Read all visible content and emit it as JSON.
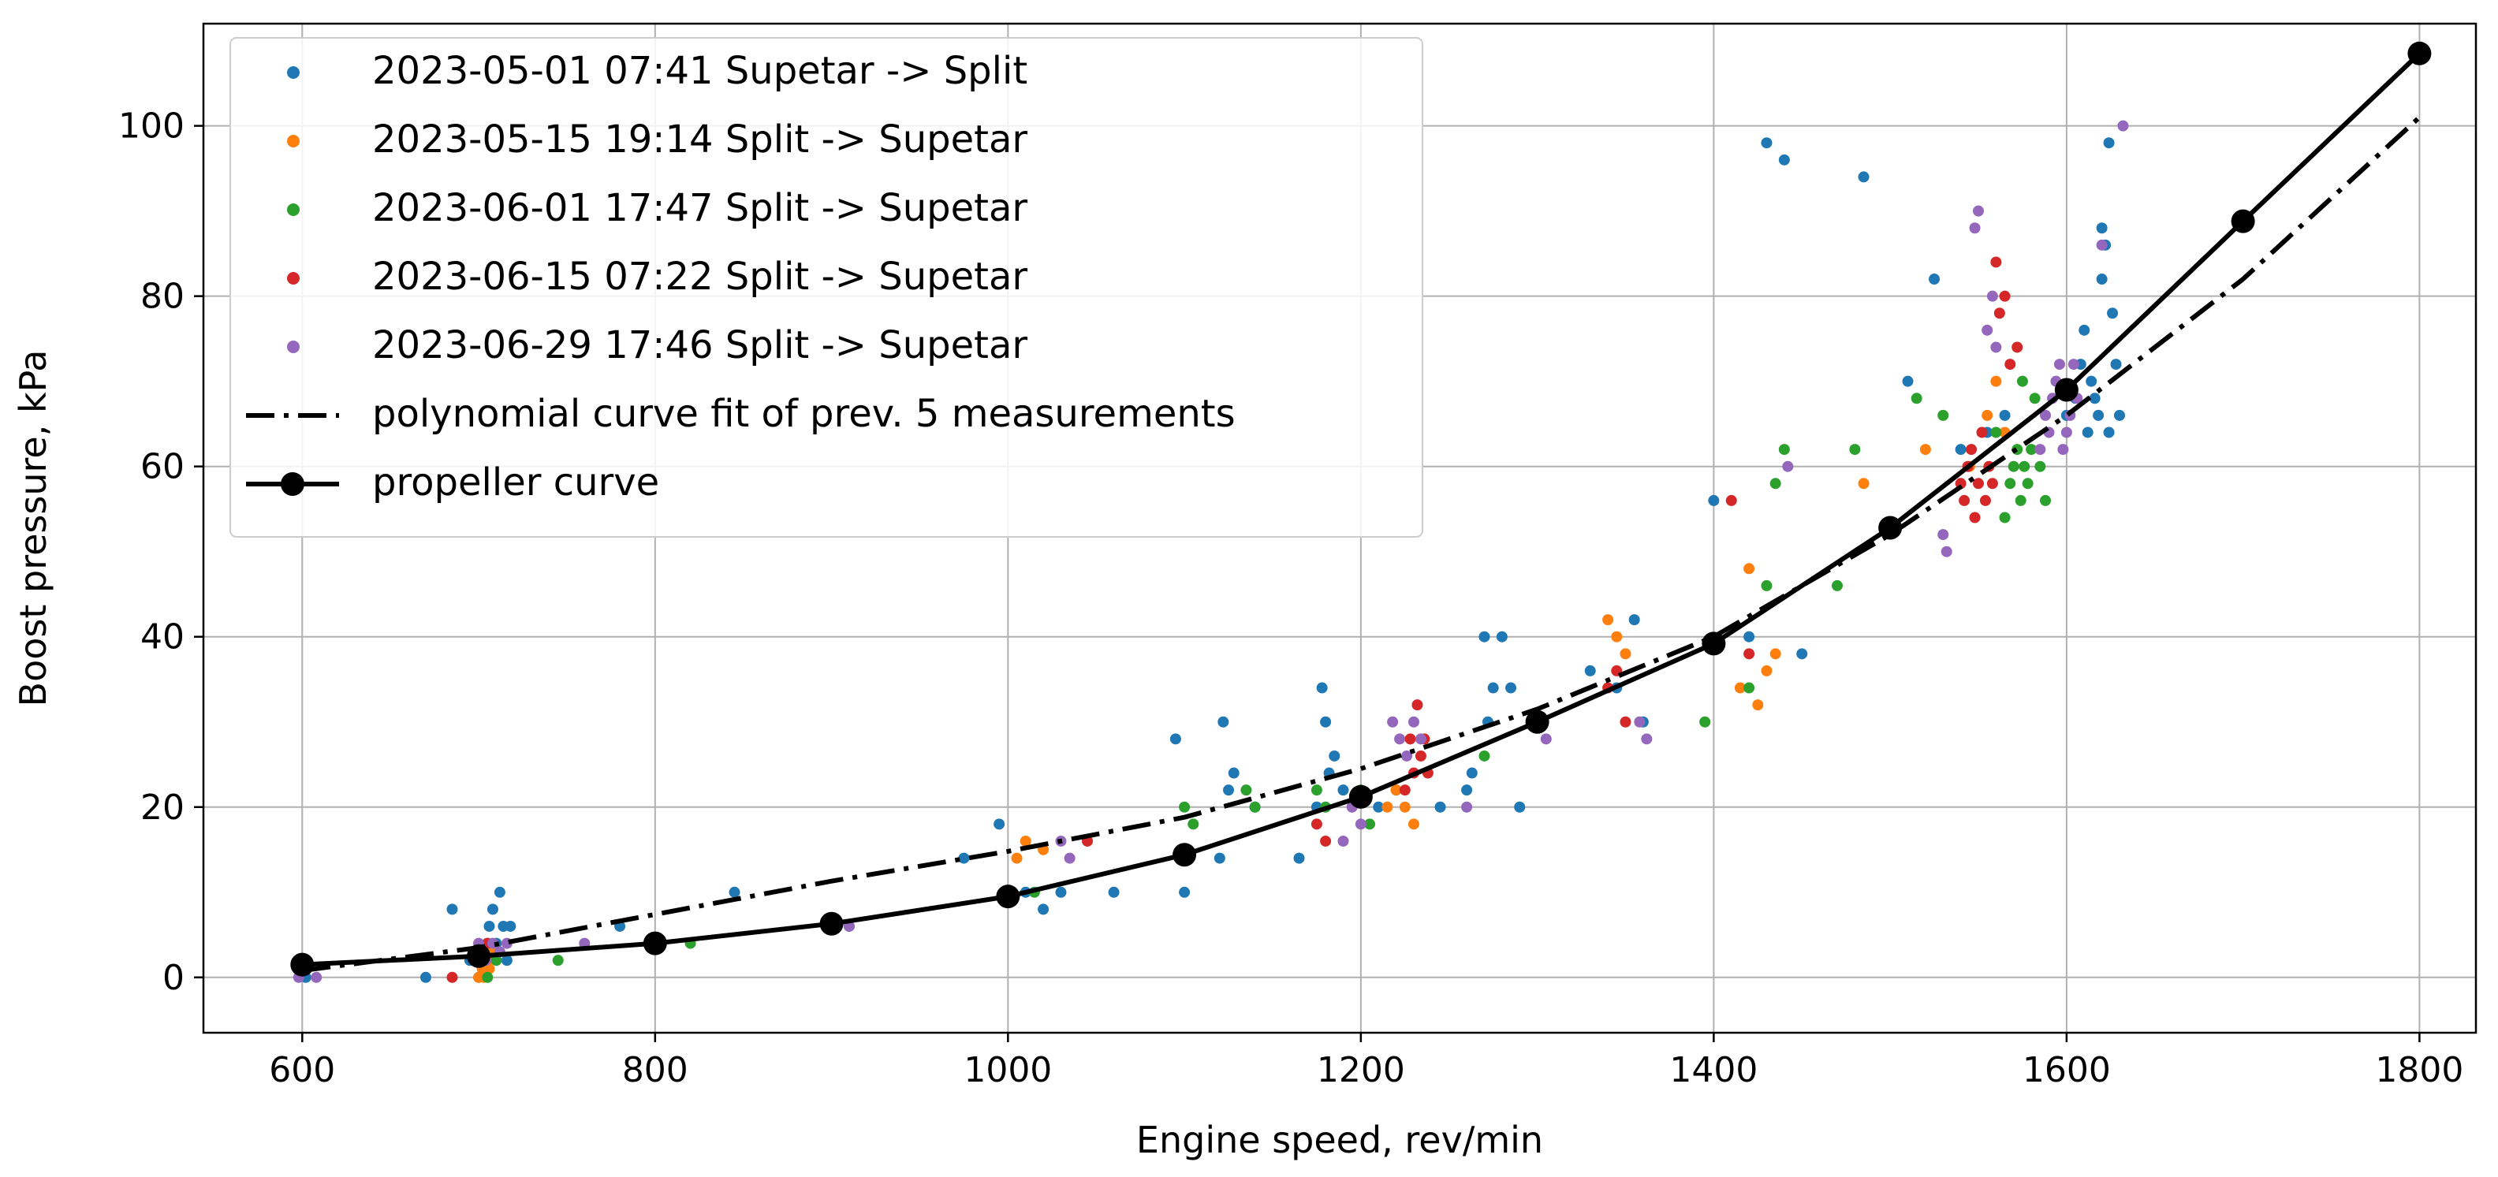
{
  "chart_data": {
    "type": "scatter",
    "xlabel": "Engine speed, rev/min",
    "ylabel": "Boost pressure, kPa",
    "xlim": [
      544,
      1832
    ],
    "ylim": [
      -6.5,
      112
    ],
    "xticks": [
      600,
      800,
      1000,
      1200,
      1400,
      1600,
      1800
    ],
    "yticks": [
      0,
      20,
      40,
      60,
      80,
      100
    ],
    "grid": true,
    "legend_position": "top-left",
    "series": [
      {
        "name": "2023-05-01  07:41 Supetar -> Split",
        "kind": "scatter",
        "color": "#1f77b4",
        "points": [
          [
            600,
            1
          ],
          [
            602,
            0
          ],
          [
            670,
            0
          ],
          [
            685,
            8
          ],
          [
            695,
            2
          ],
          [
            700,
            0
          ],
          [
            702,
            2
          ],
          [
            705,
            4
          ],
          [
            706,
            6
          ],
          [
            708,
            8
          ],
          [
            710,
            4
          ],
          [
            712,
            10
          ],
          [
            714,
            6
          ],
          [
            716,
            2
          ],
          [
            718,
            6
          ],
          [
            780,
            6
          ],
          [
            845,
            10
          ],
          [
            910,
            6
          ],
          [
            975,
            14
          ],
          [
            995,
            18
          ],
          [
            1010,
            10
          ],
          [
            1020,
            8
          ],
          [
            1030,
            10
          ],
          [
            1060,
            10
          ],
          [
            1095,
            28
          ],
          [
            1100,
            10
          ],
          [
            1120,
            14
          ],
          [
            1122,
            30
          ],
          [
            1125,
            22
          ],
          [
            1128,
            24
          ],
          [
            1140,
            20
          ],
          [
            1165,
            14
          ],
          [
            1175,
            20
          ],
          [
            1178,
            34
          ],
          [
            1180,
            30
          ],
          [
            1182,
            24
          ],
          [
            1185,
            26
          ],
          [
            1190,
            22
          ],
          [
            1210,
            20
          ],
          [
            1220,
            22
          ],
          [
            1245,
            20
          ],
          [
            1260,
            22
          ],
          [
            1263,
            24
          ],
          [
            1270,
            40
          ],
          [
            1272,
            30
          ],
          [
            1275,
            34
          ],
          [
            1280,
            40
          ],
          [
            1285,
            34
          ],
          [
            1290,
            20
          ],
          [
            1300,
            30
          ],
          [
            1330,
            36
          ],
          [
            1345,
            34
          ],
          [
            1355,
            42
          ],
          [
            1360,
            30
          ],
          [
            1400,
            56
          ],
          [
            1420,
            40
          ],
          [
            1430,
            98
          ],
          [
            1440,
            96
          ],
          [
            1450,
            38
          ],
          [
            1485,
            94
          ],
          [
            1510,
            70
          ],
          [
            1525,
            82
          ],
          [
            1540,
            62
          ],
          [
            1555,
            64
          ],
          [
            1565,
            66
          ],
          [
            1600,
            66
          ],
          [
            1605,
            68
          ],
          [
            1608,
            72
          ],
          [
            1610,
            76
          ],
          [
            1612,
            64
          ],
          [
            1614,
            70
          ],
          [
            1616,
            68
          ],
          [
            1618,
            66
          ],
          [
            1620,
            82
          ],
          [
            1620,
            88
          ],
          [
            1622,
            86
          ],
          [
            1624,
            64
          ],
          [
            1624,
            98
          ],
          [
            1626,
            78
          ],
          [
            1628,
            72
          ],
          [
            1630,
            66
          ]
        ]
      },
      {
        "name": "2023-05-15  19:14 Split -> Supetar",
        "kind": "scatter",
        "color": "#ff7f0e",
        "points": [
          [
            600,
            2
          ],
          [
            700,
            0
          ],
          [
            702,
            1
          ],
          [
            703,
            0
          ],
          [
            705,
            2
          ],
          [
            706,
            1
          ],
          [
            708,
            3
          ],
          [
            1005,
            14
          ],
          [
            1010,
            16
          ],
          [
            1020,
            15
          ],
          [
            1215,
            20
          ],
          [
            1220,
            22
          ],
          [
            1225,
            20
          ],
          [
            1230,
            18
          ],
          [
            1340,
            42
          ],
          [
            1345,
            40
          ],
          [
            1350,
            38
          ],
          [
            1415,
            34
          ],
          [
            1420,
            48
          ],
          [
            1425,
            32
          ],
          [
            1430,
            36
          ],
          [
            1435,
            38
          ],
          [
            1485,
            58
          ],
          [
            1520,
            62
          ],
          [
            1545,
            60
          ],
          [
            1555,
            66
          ],
          [
            1560,
            70
          ],
          [
            1565,
            64
          ]
        ]
      },
      {
        "name": "2023-06-01  17:47 Split -> Supetar",
        "kind": "scatter",
        "color": "#2ca02c",
        "points": [
          [
            702,
            2
          ],
          [
            705,
            0
          ],
          [
            710,
            2
          ],
          [
            745,
            2
          ],
          [
            820,
            4
          ],
          [
            1015,
            10
          ],
          [
            1100,
            20
          ],
          [
            1105,
            18
          ],
          [
            1135,
            22
          ],
          [
            1140,
            20
          ],
          [
            1175,
            22
          ],
          [
            1180,
            20
          ],
          [
            1200,
            22
          ],
          [
            1205,
            18
          ],
          [
            1270,
            26
          ],
          [
            1395,
            30
          ],
          [
            1420,
            34
          ],
          [
            1430,
            46
          ],
          [
            1435,
            58
          ],
          [
            1440,
            62
          ],
          [
            1470,
            46
          ],
          [
            1480,
            62
          ],
          [
            1515,
            68
          ],
          [
            1530,
            66
          ],
          [
            1560,
            64
          ],
          [
            1565,
            54
          ],
          [
            1568,
            58
          ],
          [
            1570,
            60
          ],
          [
            1572,
            62
          ],
          [
            1574,
            56
          ],
          [
            1575,
            70
          ],
          [
            1576,
            60
          ],
          [
            1578,
            58
          ],
          [
            1580,
            62
          ],
          [
            1582,
            68
          ],
          [
            1585,
            60
          ],
          [
            1588,
            56
          ]
        ]
      },
      {
        "name": "2023-06-15  07:22 Split -> Supetar",
        "kind": "scatter",
        "color": "#d62728",
        "points": [
          [
            685,
            0
          ],
          [
            700,
            2
          ],
          [
            702,
            3
          ],
          [
            705,
            4
          ],
          [
            1045,
            16
          ],
          [
            1175,
            18
          ],
          [
            1180,
            16
          ],
          [
            1225,
            22
          ],
          [
            1228,
            28
          ],
          [
            1230,
            24
          ],
          [
            1232,
            32
          ],
          [
            1234,
            26
          ],
          [
            1236,
            28
          ],
          [
            1238,
            24
          ],
          [
            1340,
            34
          ],
          [
            1345,
            36
          ],
          [
            1350,
            30
          ],
          [
            1410,
            56
          ],
          [
            1420,
            38
          ],
          [
            1540,
            58
          ],
          [
            1542,
            56
          ],
          [
            1544,
            60
          ],
          [
            1546,
            62
          ],
          [
            1548,
            54
          ],
          [
            1550,
            58
          ],
          [
            1552,
            64
          ],
          [
            1554,
            56
          ],
          [
            1556,
            60
          ],
          [
            1558,
            58
          ],
          [
            1560,
            84
          ],
          [
            1562,
            78
          ],
          [
            1565,
            80
          ],
          [
            1568,
            72
          ],
          [
            1572,
            74
          ]
        ]
      },
      {
        "name": "2023-06-29  17:46 Split -> Supetar",
        "kind": "scatter",
        "color": "#9467bd",
        "points": [
          [
            598,
            0
          ],
          [
            608,
            0
          ],
          [
            700,
            4
          ],
          [
            704,
            2
          ],
          [
            708,
            4
          ],
          [
            712,
            3
          ],
          [
            716,
            4
          ],
          [
            760,
            4
          ],
          [
            910,
            6
          ],
          [
            1030,
            16
          ],
          [
            1035,
            14
          ],
          [
            1190,
            16
          ],
          [
            1195,
            20
          ],
          [
            1200,
            18
          ],
          [
            1218,
            30
          ],
          [
            1222,
            28
          ],
          [
            1226,
            26
          ],
          [
            1230,
            30
          ],
          [
            1234,
            28
          ],
          [
            1260,
            20
          ],
          [
            1305,
            28
          ],
          [
            1358,
            30
          ],
          [
            1362,
            28
          ],
          [
            1442,
            60
          ],
          [
            1530,
            52
          ],
          [
            1532,
            50
          ],
          [
            1548,
            88
          ],
          [
            1550,
            90
          ],
          [
            1555,
            76
          ],
          [
            1558,
            80
          ],
          [
            1560,
            74
          ],
          [
            1585,
            62
          ],
          [
            1588,
            66
          ],
          [
            1590,
            64
          ],
          [
            1592,
            68
          ],
          [
            1594,
            70
          ],
          [
            1596,
            72
          ],
          [
            1598,
            62
          ],
          [
            1600,
            64
          ],
          [
            1602,
            66
          ],
          [
            1604,
            72
          ],
          [
            1606,
            68
          ],
          [
            1620,
            86
          ],
          [
            1632,
            100
          ]
        ]
      },
      {
        "name": "polynomial curve fit of prev. 5 measurements",
        "kind": "line",
        "style": "dash-dot",
        "color": "#000000",
        "points": [
          [
            600,
            0.8
          ],
          [
            700,
            3.5
          ],
          [
            800,
            7.4
          ],
          [
            900,
            11.3
          ],
          [
            1000,
            14.8
          ],
          [
            1100,
            18.8
          ],
          [
            1200,
            24.5
          ],
          [
            1300,
            31.5
          ],
          [
            1400,
            40
          ],
          [
            1500,
            52
          ],
          [
            1600,
            66
          ],
          [
            1700,
            82
          ],
          [
            1800,
            101
          ]
        ]
      },
      {
        "name": "propeller curve",
        "kind": "line-markers",
        "color": "#000000",
        "points": [
          [
            600,
            1.5
          ],
          [
            700,
            2.5
          ],
          [
            800,
            4
          ],
          [
            900,
            6.3
          ],
          [
            1000,
            9.5
          ],
          [
            1100,
            14.4
          ],
          [
            1200,
            21.2
          ],
          [
            1300,
            30
          ],
          [
            1400,
            39.2
          ],
          [
            1500,
            52.8
          ],
          [
            1600,
            69
          ],
          [
            1700,
            88.8
          ],
          [
            1800,
            108.5
          ]
        ]
      }
    ]
  }
}
